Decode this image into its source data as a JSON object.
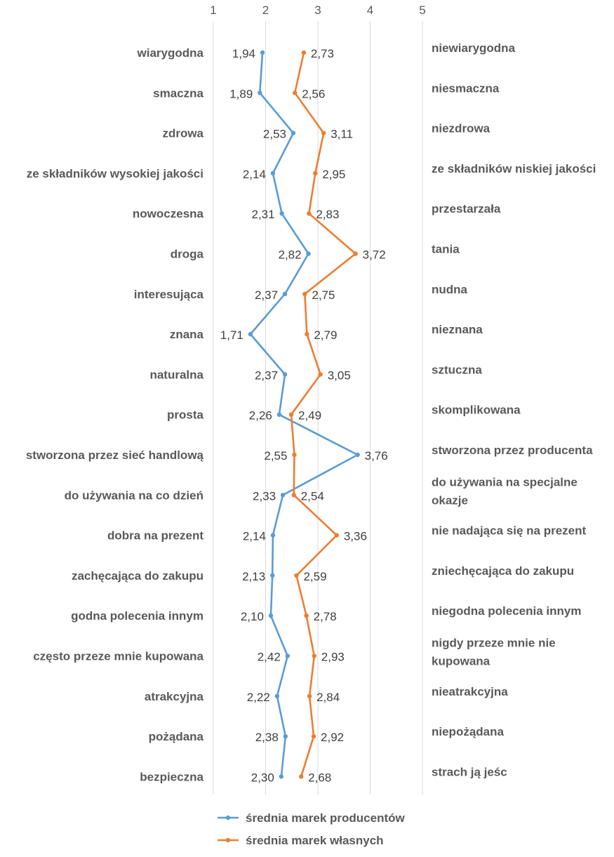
{
  "chart_data": {
    "type": "line",
    "orientation": "vertical-profile",
    "x_ticks": [
      "1",
      "2",
      "3",
      "4",
      "5"
    ],
    "xlim": [
      1,
      5
    ],
    "grid": true,
    "legend_position": "bottom",
    "left_labels": [
      "wiarygodna",
      "smaczna",
      "zdrowa",
      "ze składników wysokiej jakości",
      "nowoczesna",
      "droga",
      "interesująca",
      "znana",
      "naturalna",
      "prosta",
      "stworzona przez sieć handlową",
      "do używania na co dzień",
      "dobra na prezent",
      "zachęcająca do zakupu",
      "godna polecenia innym",
      "często przeze mnie kupowana",
      "atrakcyjna",
      "pożądana",
      "bezpieczna"
    ],
    "right_labels": [
      [
        "niewiarygodna"
      ],
      [
        "niesmaczna"
      ],
      [
        "niezdrowa"
      ],
      [
        "ze składników niskiej jakości"
      ],
      [
        "przestarzała"
      ],
      [
        "tania"
      ],
      [
        "nudna"
      ],
      [
        "nieznana"
      ],
      [
        "sztuczna"
      ],
      [
        "skomplikowana"
      ],
      [
        "stworzona przez producenta"
      ],
      [
        "do używania na specjalne",
        "okazje"
      ],
      [
        "nie nadająca się na prezent"
      ],
      [
        "zniechęcająca do zakupu"
      ],
      [
        "niegodna polecenia innym"
      ],
      [
        "nigdy przeze mnie nie",
        "kupowana"
      ],
      [
        "nieatrakcyjna"
      ],
      [
        "niepożądana"
      ],
      [
        "strach ją jeśc"
      ]
    ],
    "series": [
      {
        "name": "średnia marek producentów",
        "color": "#5b9bd5",
        "values": [
          1.94,
          1.89,
          2.53,
          2.14,
          2.31,
          2.82,
          2.37,
          1.71,
          2.37,
          2.26,
          3.76,
          2.33,
          2.14,
          2.13,
          2.1,
          2.42,
          2.22,
          2.38,
          2.3
        ],
        "labels": [
          "1,94",
          "1,89",
          "2,53",
          "2,14",
          "2,31",
          "2,82",
          "2,37",
          "1,71",
          "2,37",
          "2,26",
          "3,76",
          "2,33",
          "2,14",
          "2,13",
          "2,10",
          "2,42",
          "2,22",
          "2,38",
          "2,30"
        ]
      },
      {
        "name": "średnia marek własnych",
        "color": "#ed7d31",
        "values": [
          2.73,
          2.56,
          3.11,
          2.95,
          2.83,
          3.72,
          2.75,
          2.79,
          3.05,
          2.49,
          2.55,
          2.54,
          3.36,
          2.59,
          2.78,
          2.93,
          2.84,
          2.92,
          2.68
        ],
        "labels": [
          "2,73",
          "2,56",
          "3,11",
          "2,95",
          "2,83",
          "3,72",
          "2,75",
          "2,79",
          "3,05",
          "2,49",
          "2,55",
          "2,54",
          "3,36",
          "2,59",
          "2,78",
          "2,93",
          "2,84",
          "2,92",
          "2,68"
        ]
      }
    ]
  }
}
